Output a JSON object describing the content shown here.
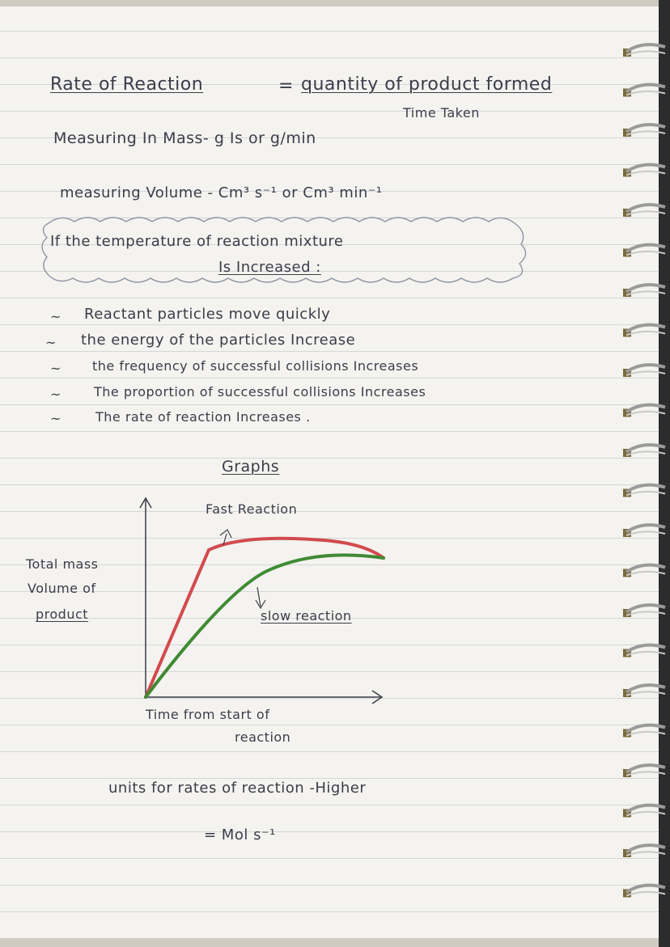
{
  "header": {
    "rate_label": "Rate of Reaction",
    "equals": "=",
    "numerator": "quantity of product formed",
    "denominator": "Time Taken"
  },
  "mass_line": "Measuring In Mass- g Is or g/min",
  "volume_line": "measuring Volume - Cm³ s⁻¹ or Cm³ min⁻¹",
  "temperature_box": {
    "line1": "If the temperature of reaction mixture",
    "line2": "Is Increased :"
  },
  "bullets": [
    "Reactant particles move quickly",
    "the energy of the particles Increase",
    "the frequency of successful collisions Increases",
    "The proportion of successful collisions Increases",
    "The rate of reaction Increases ."
  ],
  "graph": {
    "title": "Graphs",
    "fast_label": "Fast Reaction",
    "slow_label": "slow reaction",
    "y_label_1": "Total mass",
    "y_label_2": "Volume of",
    "y_label_3": "product",
    "x_label_1": "Time from start of",
    "x_label_2": "reaction",
    "fast_color": "#d24a4e",
    "slow_color": "#3f8a34"
  },
  "units": {
    "line1": "units for rates of reaction -Higher",
    "line2": "= Mol s⁻¹"
  }
}
